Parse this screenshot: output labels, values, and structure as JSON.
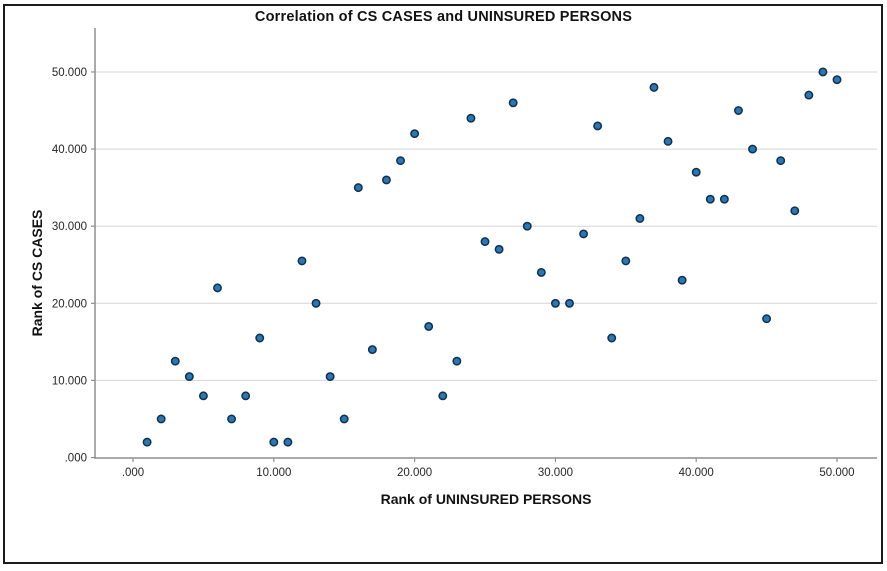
{
  "figure": {
    "title": "Correlation of CS CASES and UNINSURED PERSONS",
    "x_axis_title": "Rank of UNINSURED PERSONS",
    "y_axis_title": "Rank of CS CASES"
  },
  "colors": {
    "marker_fill": "#2878b5",
    "marker_stroke": "#122f4d",
    "gridline": "#d5d5d5",
    "axis_line": "#8e8e8e",
    "tick_text": "#262626",
    "title_text": "#121212",
    "frame_border": "#1b1b1b",
    "background": "#ffffff"
  },
  "chart_data": {
    "type": "scatter",
    "title": "Correlation of CS CASES and UNINSURED PERSONS",
    "xlabel": "Rank of UNINSURED PERSONS",
    "ylabel": "Rank of CS CASES",
    "xlim": [
      -2.7,
      52.84
    ],
    "ylim": [
      -0.06,
      55.7
    ],
    "x_ticks": [
      0,
      10,
      20,
      30,
      40,
      50
    ],
    "y_ticks": [
      0,
      10,
      20,
      30,
      40,
      50
    ],
    "x_tick_labels": [
      ".000",
      "10.000",
      "20.000",
      "30.000",
      "40.000",
      "50.000"
    ],
    "y_tick_labels": [
      ".000",
      "10.000",
      "20.000",
      "30.000",
      "40.000",
      "50.000"
    ],
    "grid": "horizontal-only",
    "legend": "none",
    "points": [
      [
        1,
        2
      ],
      [
        2,
        5
      ],
      [
        3,
        12.5
      ],
      [
        4,
        10.5
      ],
      [
        5,
        8
      ],
      [
        6,
        22
      ],
      [
        7,
        5
      ],
      [
        8,
        8
      ],
      [
        9,
        15.5
      ],
      [
        10,
        2
      ],
      [
        11,
        2
      ],
      [
        12,
        25.5
      ],
      [
        13,
        20
      ],
      [
        14,
        10.5
      ],
      [
        15,
        5
      ],
      [
        16,
        35
      ],
      [
        17,
        14
      ],
      [
        18,
        36
      ],
      [
        19,
        38.5
      ],
      [
        20,
        42
      ],
      [
        21,
        17
      ],
      [
        22,
        8
      ],
      [
        23,
        12.5
      ],
      [
        24,
        44
      ],
      [
        25,
        28
      ],
      [
        26,
        27
      ],
      [
        27,
        46
      ],
      [
        28,
        30
      ],
      [
        29,
        24
      ],
      [
        30,
        20
      ],
      [
        31,
        20
      ],
      [
        32,
        29
      ],
      [
        33,
        43
      ],
      [
        34,
        15.5
      ],
      [
        35,
        25.5
      ],
      [
        36,
        31
      ],
      [
        37,
        48
      ],
      [
        38,
        41
      ],
      [
        39,
        23
      ],
      [
        40,
        37
      ],
      [
        41,
        33.5
      ],
      [
        42,
        33.5
      ],
      [
        43,
        45
      ],
      [
        44,
        40
      ],
      [
        45,
        18
      ],
      [
        46,
        38.5
      ],
      [
        47,
        32
      ],
      [
        48,
        47
      ],
      [
        49,
        50
      ],
      [
        50,
        49
      ]
    ]
  }
}
